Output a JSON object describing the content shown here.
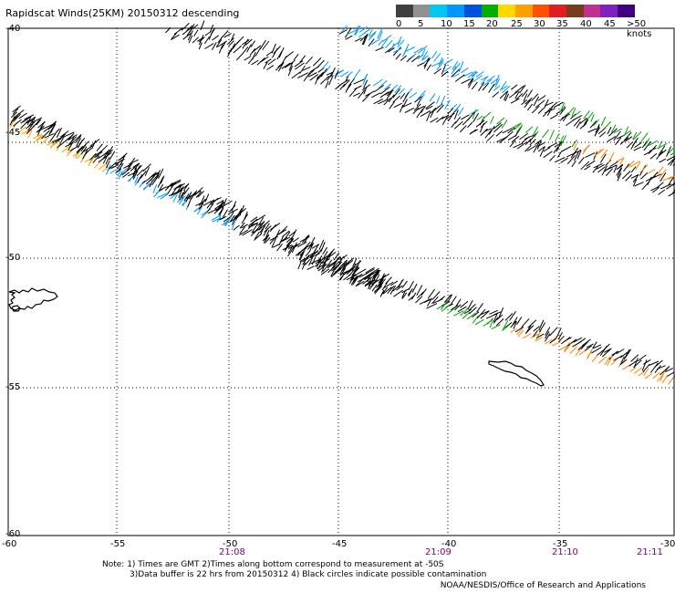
{
  "title": "Rapidscat Winds(25KM) 20150312 descending",
  "legend": {
    "colors": [
      "#404040",
      "#909090",
      "#00c8f0",
      "#0096ff",
      "#0050e0",
      "#00b000",
      "#ffd800",
      "#ffa000",
      "#ff5000",
      "#e02020",
      "#7a3a20",
      "#c03090",
      "#8020c0",
      "#400080"
    ],
    "labels": [
      "0",
      "5",
      "10",
      "15",
      "20",
      "25",
      "30",
      "35",
      "40",
      "45",
      ">50 knots"
    ]
  },
  "axes": {
    "y_labels": [
      "-40",
      "-45",
      "-50",
      "-55",
      "-60"
    ],
    "x_labels": [
      "-60",
      "-55",
      "-50",
      "-45",
      "-40",
      "-35",
      "-30"
    ]
  },
  "times": [
    "21:08",
    "21:09",
    "21:10",
    "21:11"
  ],
  "notes": {
    "line1": "Note: 1) Times are GMT 2)Times along bottom correspond to measurement at -50S",
    "line2": "3)Data buffer is 22 hrs from 20150312 4) Black circles indicate possible contamination"
  },
  "credit": "NOAA/NESDIS/Office of Research and Applications"
}
